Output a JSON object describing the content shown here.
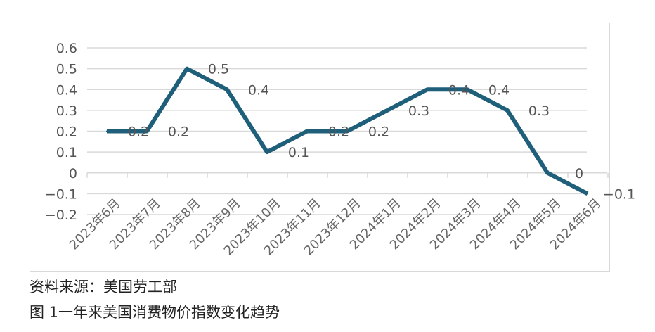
{
  "chart_data": {
    "type": "line",
    "categories": [
      "2023年6月",
      "2023年7月",
      "2023年8月",
      "2023年9月",
      "2023年10月",
      "2023年11月",
      "2023年12月",
      "2024年1月",
      "2024年2月",
      "2024年3月",
      "2024年4月",
      "2024年5月",
      "2024年6月"
    ],
    "values": [
      0.2,
      0.2,
      0.5,
      0.4,
      0.1,
      0.2,
      0.2,
      0.3,
      0.4,
      0.4,
      0.3,
      0,
      -0.1
    ],
    "data_labels": [
      "0.2",
      "0.2",
      "0.5",
      "0.4",
      "0.1",
      "0.2",
      "0.2",
      "0.3",
      "0.4",
      "0.4",
      "0.3",
      "0",
      "-0.1"
    ],
    "ylim": [
      -0.2,
      0.6
    ],
    "yticks": [
      "0.6",
      "0.5",
      "0.4",
      "0.3",
      "0.2",
      "0.1",
      "0",
      "-0.1",
      "-0.2"
    ],
    "ytick_values": [
      0.6,
      0.5,
      0.4,
      0.3,
      0.2,
      0.1,
      0,
      -0.1,
      -0.2
    ],
    "grid": true,
    "line_color": "#1f5f7a",
    "legend": "none"
  },
  "source": "资料来源：美国劳工部",
  "caption": "图 1一年来美国消费物价指数变化趋势"
}
